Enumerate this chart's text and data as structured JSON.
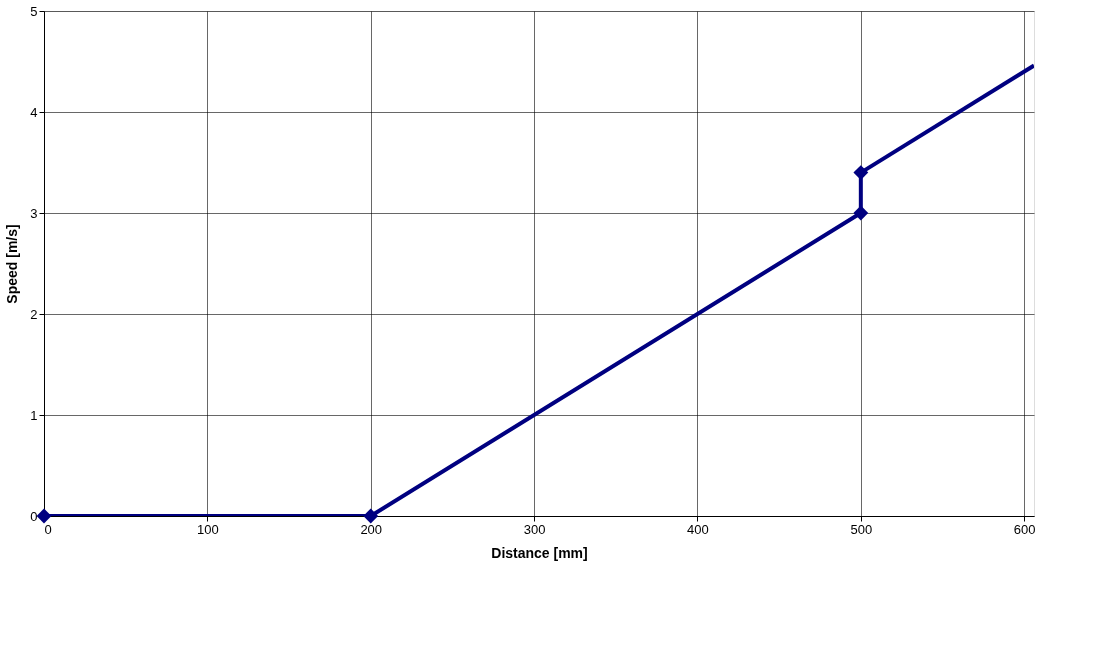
{
  "chart_data": {
    "type": "line",
    "xlabel": "Distance [mm]",
    "ylabel": "Speed [m/s]",
    "xlim": [
      0,
      606
    ],
    "xticks": [
      0,
      100,
      200,
      300,
      400,
      500,
      600
    ],
    "ylim": [
      0,
      5
    ],
    "yticks": [
      0,
      1,
      2,
      3,
      4,
      5
    ],
    "grid": true,
    "line_style": "solid",
    "series": [
      {
        "color": "#000080",
        "marker": "diamond",
        "x": [
          0,
          200,
          500,
          500
        ],
        "values": [
          0,
          0,
          3,
          3.4
        ]
      },
      {
        "color": "#000080",
        "marker": "none",
        "x": [
          500,
          606
        ],
        "values": [
          3.4,
          4.46
        ]
      }
    ]
  }
}
